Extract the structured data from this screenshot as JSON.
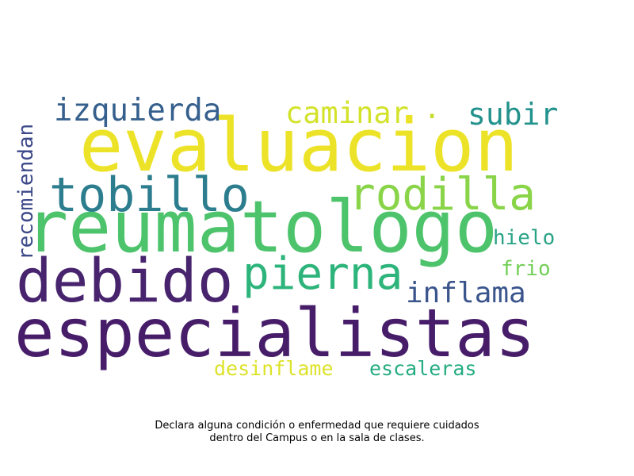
{
  "caption": {
    "line1": "Declara alguna condición o enfermedad que requiere cuidados",
    "line2": "dentro del Campus o en la sala de clases."
  },
  "words": [
    {
      "text": "evaluacion",
      "color": "#ece329"
    },
    {
      "text": "reumatologo",
      "color": "#4dc36b"
    },
    {
      "text": "especialistas",
      "color": "#471d6a"
    },
    {
      "text": "debido",
      "color": "#47246d"
    },
    {
      "text": "tobillo",
      "color": "#2c7d8e"
    },
    {
      "text": "rodilla",
      "color": "#89d448"
    },
    {
      "text": "pierna",
      "color": "#2db47b"
    },
    {
      "text": "izquierda",
      "color": "#355f8d"
    },
    {
      "text": "caminar",
      "color": "#d3e22a"
    },
    {
      "text": "subir",
      "color": "#23928c"
    },
    {
      "text": "inflama",
      "color": "#3a548c"
    },
    {
      "text": "hielo",
      "color": "#29a386"
    },
    {
      "text": "frio",
      "color": "#72cf57"
    },
    {
      "text": "recomiendan",
      "color": "#3d4a89"
    },
    {
      "text": "desinflame",
      "color": "#dde22a"
    },
    {
      "text": "escaleras",
      "color": "#25ac82"
    },
    {
      "text": ".",
      "color": "#c7dd2c"
    }
  ]
}
